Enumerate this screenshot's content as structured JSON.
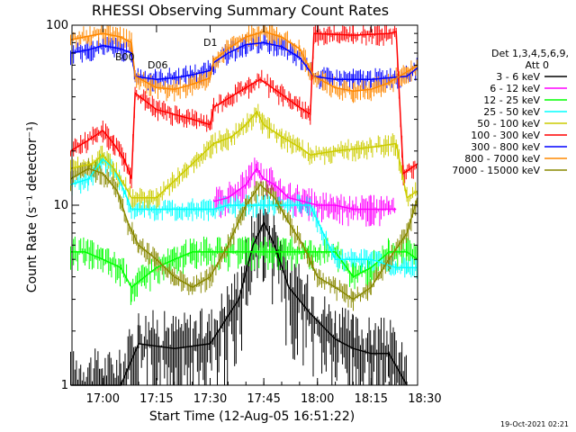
{
  "chart_data": {
    "type": "line",
    "title": "RHESSI Observing Summary Count Rates",
    "xlabel": "Start Time (12-Aug-05 16:51:22)",
    "ylabel": "Count Rate (s⁻¹ detector⁻¹)",
    "x_unit": "time of day",
    "xlim": [
      "16:51:22",
      "18:28:00"
    ],
    "ylim": [
      1,
      100
    ],
    "y_scale": "log",
    "x_ticks": [
      "17:00",
      "17:15",
      "17:30",
      "17:45",
      "18:00",
      "18:15",
      "18:30"
    ],
    "y_ticks": [
      "1",
      "10",
      "100"
    ],
    "legend_title": "Det 1,3,4,5,6,9,",
    "legend_subtitle": "Att 0",
    "legend_position": "right",
    "timestamp": "19-Oct-2021 02:21",
    "flags": [
      "D1",
      "B00",
      "D06"
    ],
    "series": [
      {
        "name": "3 - 6 keV",
        "color": "#000000",
        "x": [
          "16:51",
          "17:05",
          "17:10",
          "17:20",
          "17:30",
          "17:38",
          "17:42",
          "17:45",
          "17:48",
          "17:52",
          "17:58",
          "18:05",
          "18:10",
          "18:15",
          "18:20",
          "18:25"
        ],
        "y": [
          1,
          1,
          1.7,
          1.6,
          1.7,
          3.0,
          6.0,
          8.0,
          6.0,
          3.5,
          2.5,
          1.8,
          1.6,
          1.5,
          1.5,
          1
        ]
      },
      {
        "name": "6 - 12 keV",
        "color": "#ff00ff",
        "x": [
          "17:31",
          "17:35",
          "17:40",
          "17:43",
          "17:45",
          "17:48",
          "17:52",
          "17:56",
          "18:00",
          "18:05",
          "18:10",
          "18:15",
          "18:20",
          "18:22"
        ],
        "y": [
          10.5,
          11,
          13,
          16,
          14,
          13,
          11,
          10.5,
          10,
          10,
          9.5,
          9.5,
          9.5,
          9.5
        ]
      },
      {
        "name": "12 - 25 keV",
        "color": "#00ff00",
        "x": [
          "16:51",
          "16:55",
          "17:00",
          "17:05",
          "17:08",
          "17:15",
          "17:20",
          "17:25",
          "17:30",
          "17:35",
          "17:40",
          "17:45",
          "17:50",
          "17:55",
          "18:00",
          "18:05",
          "18:10",
          "18:15",
          "18:20",
          "18:25",
          "18:28"
        ],
        "y": [
          5.5,
          5.5,
          5.0,
          4.5,
          3.5,
          4.5,
          5.0,
          5.5,
          5.5,
          5.5,
          5.5,
          5.5,
          5.5,
          5.5,
          5.5,
          5.5,
          4.0,
          4.5,
          5.5,
          5.5,
          5.0
        ]
      },
      {
        "name": "25 - 50 keV",
        "color": "#00ffff",
        "x": [
          "16:51",
          "16:56",
          "17:00",
          "17:03",
          "17:06",
          "17:08",
          "17:15",
          "17:31",
          "17:35",
          "17:40",
          "17:45",
          "17:50",
          "17:55",
          "17:58",
          "18:05",
          "18:15",
          "18:22",
          "18:25",
          "18:28"
        ],
        "y": [
          13,
          14,
          18,
          16,
          12,
          9.5,
          9.5,
          9.5,
          10,
          10,
          10,
          10,
          10,
          10,
          5.0,
          5.0,
          4.5,
          4.5,
          4.5
        ]
      },
      {
        "name": "50 - 100 keV",
        "color": "#cccc00",
        "x": [
          "16:51",
          "16:57",
          "17:00",
          "17:03",
          "17:06",
          "17:08",
          "17:15",
          "17:31",
          "17:36",
          "17:40",
          "17:43",
          "17:45",
          "17:50",
          "17:55",
          "17:58",
          "18:05",
          "18:15",
          "18:22",
          "18:25",
          "18:28"
        ],
        "y": [
          16,
          17,
          19,
          16,
          13,
          11,
          11,
          22,
          24,
          28,
          33,
          28,
          24,
          21,
          19,
          20,
          21,
          22,
          11,
          12
        ]
      },
      {
        "name": "100 - 300 keV",
        "color": "#ff0000",
        "x": [
          "16:51",
          "16:56",
          "17:00",
          "17:03",
          "17:06",
          "17:08",
          "17:09",
          "17:15",
          "17:25",
          "17:30",
          "17:31",
          "17:40",
          "17:44",
          "17:48",
          "17:55",
          "17:58",
          "17:59",
          "18:10",
          "18:20",
          "18:22",
          "18:24",
          "18:26",
          "18:28"
        ],
        "y": [
          20,
          23,
          26,
          22,
          18,
          14,
          42,
          34,
          30,
          28,
          35,
          45,
          50,
          44,
          35,
          32,
          90,
          88,
          90,
          92,
          15,
          16,
          17
        ]
      },
      {
        "name": "300 - 800 keV",
        "color": "#0000ff",
        "x": [
          "16:51",
          "16:56",
          "17:00",
          "17:05",
          "17:08",
          "17:09",
          "17:15",
          "17:20",
          "17:25",
          "17:30",
          "17:31",
          "17:35",
          "17:40",
          "17:45",
          "17:50",
          "17:55",
          "17:59",
          "18:05",
          "18:10",
          "18:15",
          "18:20",
          "18:25",
          "18:28"
        ],
        "y": [
          70,
          73,
          77,
          74,
          70,
          52,
          50,
          51,
          53,
          56,
          62,
          70,
          78,
          80,
          76,
          66,
          52,
          50,
          50,
          50,
          51,
          52,
          58
        ]
      },
      {
        "name": "800 - 7000 keV",
        "color": "#ff8800",
        "x": [
          "16:51",
          "16:56",
          "17:00",
          "17:05",
          "17:08",
          "17:09",
          "17:15",
          "17:20",
          "17:25",
          "17:30",
          "17:31",
          "17:35",
          "17:40",
          "17:45",
          "17:50",
          "17:55",
          "17:59",
          "18:05",
          "18:10",
          "18:15",
          "18:20",
          "18:25",
          "18:28"
        ],
        "y": [
          83,
          87,
          90,
          86,
          80,
          52,
          45,
          44,
          47,
          51,
          64,
          74,
          86,
          92,
          86,
          74,
          52,
          45,
          43,
          44,
          48,
          55,
          60
        ]
      },
      {
        "name": "7000 - 15000 keV",
        "color": "#888800",
        "x": [
          "16:51",
          "16:56",
          "17:00",
          "17:04",
          "17:07",
          "17:10",
          "17:15",
          "17:20",
          "17:25",
          "17:30",
          "17:35",
          "17:40",
          "17:44",
          "17:48",
          "17:52",
          "17:56",
          "18:00",
          "18:05",
          "18:10",
          "18:15",
          "18:20",
          "18:25",
          "18:28"
        ],
        "y": [
          14,
          16,
          15,
          12,
          8.0,
          6.0,
          5.0,
          4.0,
          3.5,
          4.0,
          6.0,
          10,
          13,
          11,
          8.0,
          6.0,
          4.0,
          3.5,
          3.0,
          3.5,
          5.0,
          7.0,
          11
        ]
      }
    ]
  }
}
